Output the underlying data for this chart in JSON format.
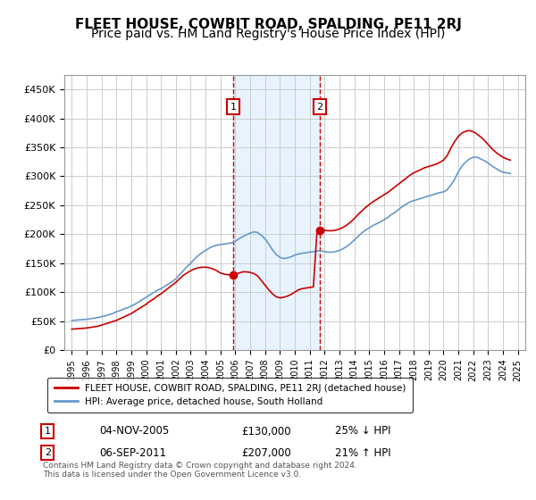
{
  "title": "FLEET HOUSE, COWBIT ROAD, SPALDING, PE11 2RJ",
  "subtitle": "Price paid vs. HM Land Registry's House Price Index (HPI)",
  "title_fontsize": 11,
  "subtitle_fontsize": 10,
  "ylabel_ticks": [
    "£0",
    "£50K",
    "£100K",
    "£150K",
    "£200K",
    "£250K",
    "£300K",
    "£350K",
    "£400K",
    "£450K"
  ],
  "ytick_values": [
    0,
    50000,
    100000,
    150000,
    200000,
    250000,
    300000,
    350000,
    400000,
    450000
  ],
  "ylim": [
    0,
    475000
  ],
  "xlim_start": 1994.5,
  "xlim_end": 2025.5,
  "xtick_years": [
    1995,
    1996,
    1997,
    1998,
    1999,
    2000,
    2001,
    2002,
    2003,
    2004,
    2005,
    2006,
    2007,
    2008,
    2009,
    2010,
    2011,
    2012,
    2013,
    2014,
    2015,
    2016,
    2017,
    2018,
    2019,
    2020,
    2021,
    2022,
    2023,
    2024,
    2025
  ],
  "purchase_marker1_x": 2005.85,
  "purchase_marker1_y": 130000,
  "purchase_marker2_x": 2011.67,
  "purchase_marker2_y": 207000,
  "shaded_region_x1": 2005.85,
  "shaded_region_x2": 2011.67,
  "marker_color": "#cc0000",
  "hpi_line_color": "#6699cc",
  "price_line_color": "#cc0000",
  "grid_color": "#cccccc",
  "bg_color": "#ffffff",
  "legend_label1": "FLEET HOUSE, COWBIT ROAD, SPALDING, PE11 2RJ (detached house)",
  "legend_label2": "HPI: Average price, detached house, South Holland",
  "table_row1": [
    "1",
    "04-NOV-2005",
    "£130,000",
    "25% ↓ HPI"
  ],
  "table_row2": [
    "2",
    "06-SEP-2011",
    "£207,000",
    "21% ↑ HPI"
  ],
  "footer_text": "Contains HM Land Registry data © Crown copyright and database right 2024.\nThis data is licensed under the Open Government Licence v3.0.",
  "hpi_data_x": [
    1995.0,
    1995.25,
    1995.5,
    1995.75,
    1996.0,
    1996.25,
    1996.5,
    1996.75,
    1997.0,
    1997.25,
    1997.5,
    1997.75,
    1998.0,
    1998.25,
    1998.5,
    1998.75,
    1999.0,
    1999.25,
    1999.5,
    1999.75,
    2000.0,
    2000.25,
    2000.5,
    2000.75,
    2001.0,
    2001.25,
    2001.5,
    2001.75,
    2002.0,
    2002.25,
    2002.5,
    2002.75,
    2003.0,
    2003.25,
    2003.5,
    2003.75,
    2004.0,
    2004.25,
    2004.5,
    2004.75,
    2005.0,
    2005.25,
    2005.5,
    2005.75,
    2006.0,
    2006.25,
    2006.5,
    2006.75,
    2007.0,
    2007.25,
    2007.5,
    2007.75,
    2008.0,
    2008.25,
    2008.5,
    2008.75,
    2009.0,
    2009.25,
    2009.5,
    2009.75,
    2010.0,
    2010.25,
    2010.5,
    2010.75,
    2011.0,
    2011.25,
    2011.5,
    2011.75,
    2012.0,
    2012.25,
    2012.5,
    2012.75,
    2013.0,
    2013.25,
    2013.5,
    2013.75,
    2014.0,
    2014.25,
    2014.5,
    2014.75,
    2015.0,
    2015.25,
    2015.5,
    2015.75,
    2016.0,
    2016.25,
    2016.5,
    2016.75,
    2017.0,
    2017.25,
    2017.5,
    2017.75,
    2018.0,
    2018.25,
    2018.5,
    2018.75,
    2019.0,
    2019.25,
    2019.5,
    2019.75,
    2020.0,
    2020.25,
    2020.5,
    2020.75,
    2021.0,
    2021.25,
    2021.5,
    2021.75,
    2022.0,
    2022.25,
    2022.5,
    2022.75,
    2023.0,
    2023.25,
    2023.5,
    2023.75,
    2024.0,
    2024.25,
    2024.5
  ],
  "hpi_data_y": [
    51000,
    51500,
    52000,
    52500,
    53000,
    54000,
    55000,
    56000,
    57500,
    59000,
    61000,
    63000,
    66000,
    68000,
    71000,
    73000,
    76000,
    79000,
    83000,
    87000,
    91000,
    95000,
    99000,
    103000,
    106000,
    110000,
    114000,
    118000,
    123000,
    130000,
    137000,
    144000,
    150000,
    157000,
    163000,
    168000,
    172000,
    176000,
    179000,
    181000,
    182000,
    183000,
    184000,
    185000,
    188000,
    192000,
    196000,
    199000,
    202000,
    204000,
    203000,
    198000,
    192000,
    183000,
    173000,
    165000,
    160000,
    158000,
    159000,
    161000,
    164000,
    166000,
    167000,
    168000,
    169000,
    170000,
    171000,
    171500,
    170000,
    169000,
    169000,
    170000,
    172000,
    175000,
    179000,
    184000,
    190000,
    196000,
    202000,
    207000,
    211000,
    215000,
    218000,
    221000,
    225000,
    229000,
    234000,
    238000,
    243000,
    248000,
    252000,
    256000,
    258000,
    260000,
    262000,
    264000,
    266000,
    268000,
    270000,
    272000,
    273000,
    277000,
    285000,
    295000,
    308000,
    318000,
    325000,
    330000,
    333000,
    333000,
    330000,
    327000,
    323000,
    318000,
    314000,
    310000,
    307000,
    306000,
    305000
  ],
  "price_data_x": [
    1995.0,
    1995.25,
    1995.5,
    1995.75,
    1996.0,
    1996.25,
    1996.5,
    1996.75,
    1997.0,
    1997.25,
    1997.5,
    1997.75,
    1998.0,
    1998.25,
    1998.5,
    1998.75,
    1999.0,
    1999.25,
    1999.5,
    1999.75,
    2000.0,
    2000.25,
    2000.5,
    2000.75,
    2001.0,
    2001.25,
    2001.5,
    2001.75,
    2002.0,
    2002.25,
    2002.5,
    2002.75,
    2003.0,
    2003.25,
    2003.5,
    2003.75,
    2004.0,
    2004.25,
    2004.5,
    2004.75,
    2005.0,
    2005.25,
    2005.5,
    2005.75,
    2006.0,
    2006.25,
    2006.5,
    2006.75,
    2007.0,
    2007.25,
    2007.5,
    2007.75,
    2008.0,
    2008.25,
    2008.5,
    2008.75,
    2009.0,
    2009.25,
    2009.5,
    2009.75,
    2010.0,
    2010.25,
    2010.5,
    2010.75,
    2011.0,
    2011.25,
    2011.5,
    2011.75,
    2012.0,
    2012.25,
    2012.5,
    2012.75,
    2013.0,
    2013.25,
    2013.5,
    2013.75,
    2014.0,
    2014.25,
    2014.5,
    2014.75,
    2015.0,
    2015.25,
    2015.5,
    2015.75,
    2016.0,
    2016.25,
    2016.5,
    2016.75,
    2017.0,
    2017.25,
    2017.5,
    2017.75,
    2018.0,
    2018.25,
    2018.5,
    2018.75,
    2019.0,
    2019.25,
    2019.5,
    2019.75,
    2020.0,
    2020.25,
    2020.5,
    2020.75,
    2021.0,
    2021.25,
    2021.5,
    2021.75,
    2022.0,
    2022.25,
    2022.5,
    2022.75,
    2023.0,
    2023.25,
    2023.5,
    2023.75,
    2024.0,
    2024.25,
    2024.5
  ],
  "price_data_y": [
    36000,
    36500,
    37000,
    37500,
    38000,
    39000,
    40000,
    41000,
    43000,
    45000,
    47000,
    49000,
    51000,
    54000,
    57000,
    60000,
    63000,
    67000,
    71000,
    75000,
    79000,
    84000,
    88000,
    93000,
    97000,
    102000,
    107000,
    112000,
    117000,
    123000,
    129000,
    133000,
    137000,
    140000,
    142000,
    143000,
    143000,
    142000,
    140000,
    137000,
    133000,
    131000,
    130000,
    130000,
    131000,
    133000,
    135000,
    135000,
    134000,
    132000,
    128000,
    120000,
    112000,
    104000,
    97000,
    92000,
    90000,
    91000,
    93000,
    96000,
    100000,
    104000,
    106000,
    107000,
    108000,
    109000,
    207000,
    208000,
    207000,
    206000,
    206000,
    207000,
    209000,
    212000,
    216000,
    221000,
    227000,
    234000,
    240000,
    246000,
    251000,
    256000,
    260000,
    264000,
    268000,
    272000,
    277000,
    282000,
    287000,
    292000,
    297000,
    302000,
    306000,
    309000,
    312000,
    315000,
    317000,
    319000,
    321000,
    324000,
    328000,
    336000,
    349000,
    360000,
    369000,
    375000,
    378000,
    379000,
    377000,
    373000,
    368000,
    362000,
    355000,
    348000,
    342000,
    337000,
    333000,
    330000,
    328000
  ]
}
